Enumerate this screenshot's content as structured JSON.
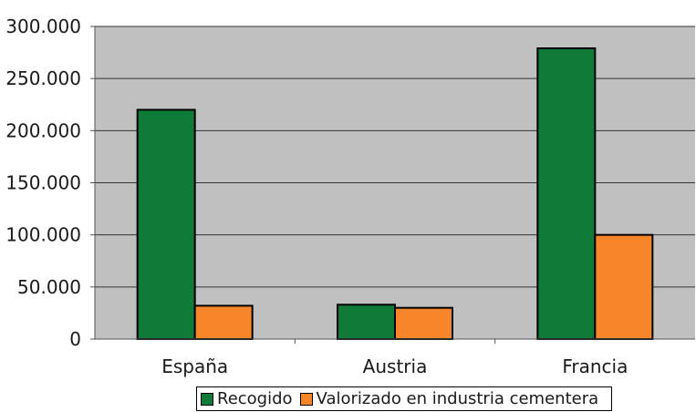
{
  "chart_data": {
    "type": "bar",
    "categories": [
      "España",
      "Austria",
      "Francia"
    ],
    "series": [
      {
        "name": "Recogido",
        "values": [
          220000,
          33000,
          279000
        ],
        "color": "#107a38"
      },
      {
        "name": "Valorizado en industria cementera",
        "values": [
          32000,
          30000,
          100000
        ],
        "color": "#f7862a"
      }
    ],
    "ylim": [
      0,
      300000
    ],
    "yticks": [
      0,
      50000,
      100000,
      150000,
      200000,
      250000,
      300000
    ],
    "ytick_labels": [
      "0",
      "50.000",
      "100.000",
      "150.000",
      "200.000",
      "250.000",
      "300.000"
    ],
    "grid": true,
    "plot_background": "#c0c0c0",
    "legend_position": "bottom"
  }
}
